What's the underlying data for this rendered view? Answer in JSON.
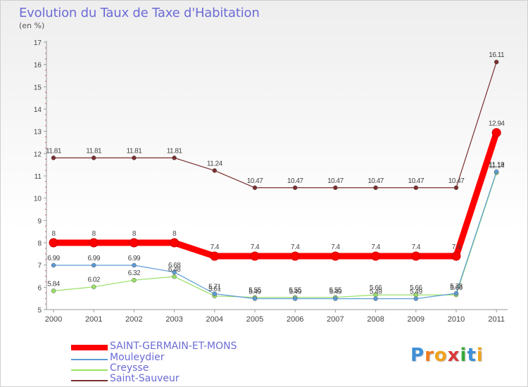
{
  "chart_data": {
    "type": "line",
    "title": "Evolution du Taux de Taxe d'Habitation",
    "subtitle": "(en %)",
    "xlabel": "",
    "ylabel": "",
    "ylim": [
      5,
      17
    ],
    "yticks": [
      "5",
      "6",
      "7",
      "8",
      "9",
      "10",
      "11",
      "12",
      "13",
      "14",
      "15",
      "16",
      "17"
    ],
    "categories": [
      "2000",
      "2001",
      "2002",
      "2003",
      "2004",
      "2005",
      "2006",
      "2007",
      "2008",
      "2009",
      "2010",
      "2011"
    ],
    "series": [
      {
        "name": "SAINT-GERMAIN-ET-MONS",
        "color": "#ff0000",
        "values": [
          8,
          8,
          8,
          8,
          7.4,
          7.4,
          7.4,
          7.4,
          7.4,
          7.4,
          7.4,
          12.94
        ],
        "labels": [
          "8",
          "8",
          "8",
          "8",
          "7.4",
          "7.4",
          "7.4",
          "7.4",
          "7.4",
          "7.4",
          "7.4",
          "12.94"
        ]
      },
      {
        "name": "Mouleydier",
        "color": "#5b9bd5",
        "values": [
          6.99,
          6.99,
          6.99,
          6.68,
          5.71,
          5.49,
          5.49,
          5.49,
          5.49,
          5.49,
          5.73,
          11.19
        ],
        "labels": [
          "6.99",
          "6.99",
          "6.99",
          "6.68",
          "5.71",
          "5.49",
          "5.49",
          "5.49",
          "5.49",
          "5.49",
          "5.73",
          "11.19"
        ]
      },
      {
        "name": "Creysse",
        "color": "#99e066",
        "values": [
          5.84,
          6.02,
          6.32,
          6.48,
          5.61,
          5.55,
          5.55,
          5.55,
          5.66,
          5.66,
          5.66,
          11.14
        ],
        "labels": [
          "5.84",
          "6.02",
          "6.32",
          "6.48",
          "5.61",
          "5.55",
          "5.55",
          "5.55",
          "5.66",
          "5.66",
          "5.66",
          "11.14"
        ]
      },
      {
        "name": "Saint-Sauveur",
        "color": "#7a2e2e",
        "values": [
          11.81,
          11.81,
          11.81,
          11.81,
          11.24,
          10.47,
          10.47,
          10.47,
          10.47,
          10.47,
          10.47,
          16.11
        ],
        "labels": [
          "11.81",
          "11.81",
          "11.81",
          "11.81",
          "11.24",
          "10.47",
          "10.47",
          "10.47",
          "10.47",
          "10.47",
          "10.47",
          "16.11"
        ]
      }
    ],
    "legend_position": "bottom-left"
  },
  "logo": {
    "letters": [
      "P",
      "r",
      "o",
      "x",
      "i",
      "t",
      "i"
    ],
    "colors": [
      "#3d8fd8",
      "#f07a1e",
      "#f0a21e",
      "#d83a3a",
      "#38a838",
      "#3d8fd8",
      "#f0a21e"
    ]
  }
}
